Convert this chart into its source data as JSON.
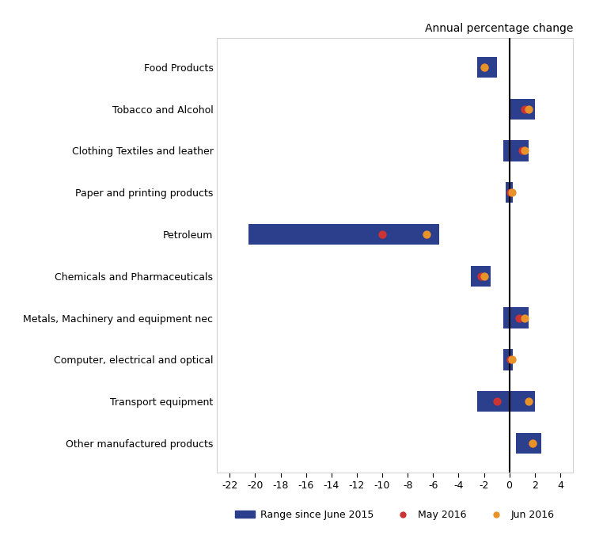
{
  "categories": [
    "Food Products",
    "Tobacco and Alcohol",
    "Clothing Textiles and leather",
    "Paper and printing products",
    "Petroleum",
    "Chemicals and Pharmaceuticals",
    "Metals, Machinery and equipment nec",
    "Computer, electrical and optical",
    "Transport equipment",
    "Other manufactured products"
  ],
  "range_min": [
    -2.5,
    0.0,
    -0.5,
    -0.3,
    -20.5,
    -3.0,
    -0.5,
    -0.5,
    -2.5,
    0.5
  ],
  "range_max": [
    -1.0,
    2.0,
    1.5,
    0.3,
    -5.5,
    -1.5,
    1.5,
    0.3,
    2.0,
    2.5
  ],
  "may_2016": [
    -2.0,
    1.2,
    1.0,
    0.1,
    -10.0,
    -2.2,
    0.8,
    0.1,
    -1.0,
    1.8
  ],
  "jun_2016": [
    -2.0,
    1.5,
    1.2,
    0.2,
    -6.5,
    -2.0,
    1.2,
    0.2,
    1.5,
    1.8
  ],
  "bar_color": "#2b3f8c",
  "may_color": "#cc3333",
  "jun_color": "#e8922a",
  "title": "Annual percentage change",
  "xlim": [
    -23,
    5
  ],
  "xticks": [
    -22,
    -20,
    -18,
    -16,
    -14,
    -12,
    -10,
    -8,
    -6,
    -4,
    -2,
    0,
    2,
    4
  ],
  "bar_height": 0.5,
  "background_color": "#ffffff",
  "legend_labels": [
    "Range since June 2015",
    "May 2016",
    "Jun 2016"
  ],
  "dot_size": 55
}
